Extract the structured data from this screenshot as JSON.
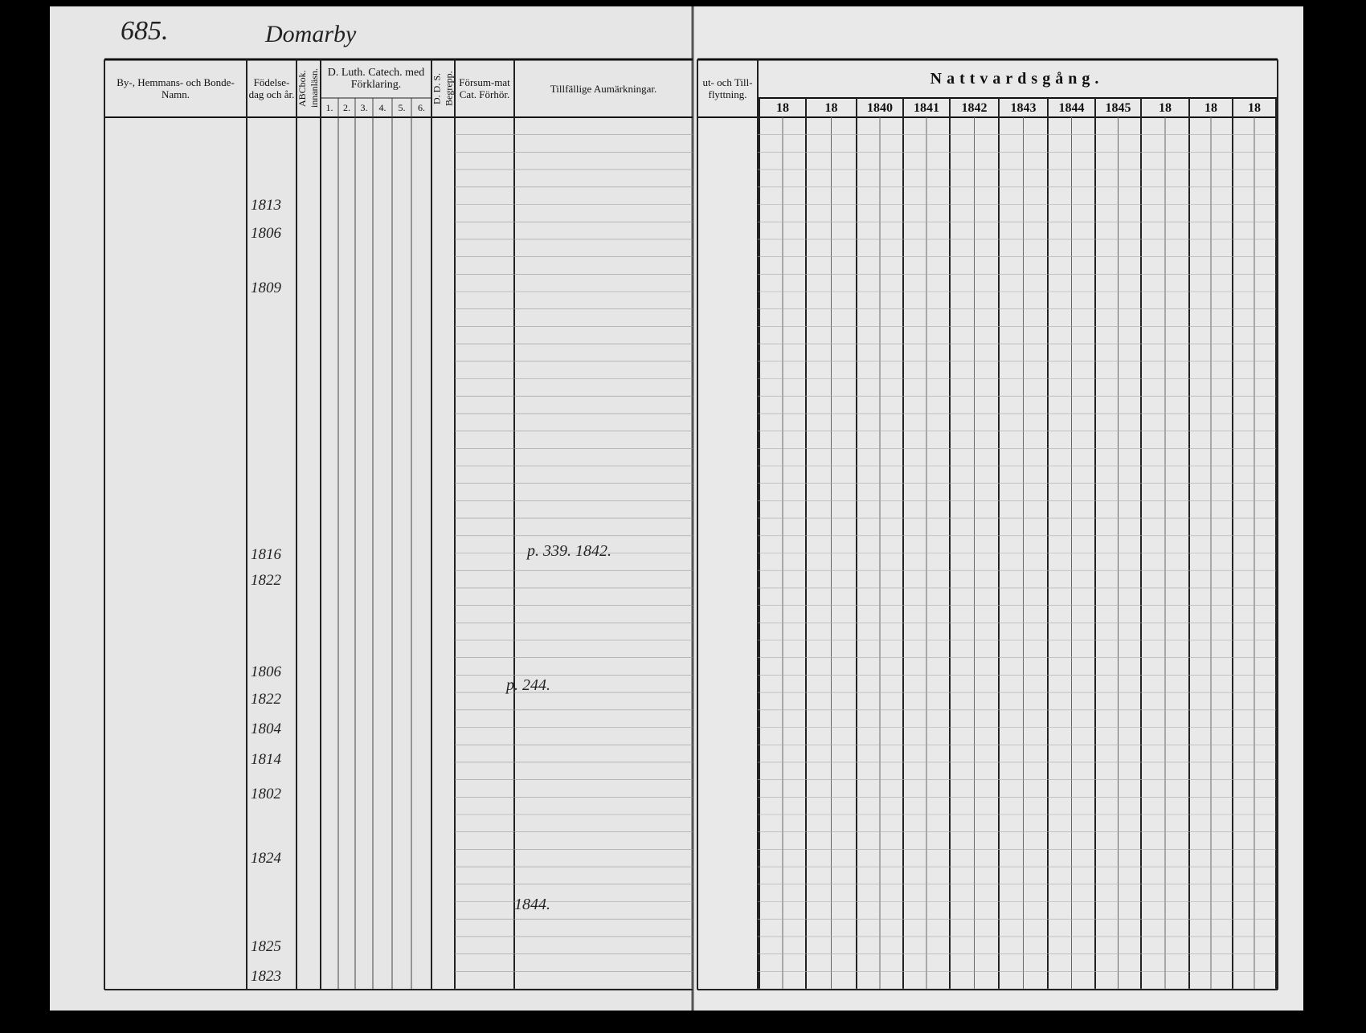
{
  "header": {
    "page_number": "685.",
    "place": "Domarby"
  },
  "left_page": {
    "columns": {
      "name": "By-, Hemmans- och Bonde-Namn.",
      "birth": "Födelse-dag och år.",
      "abc": "ABCbok. innanläsn.",
      "catechism": "D. Luth. Catech. med Förklaring.",
      "catechism_parts": [
        "1.",
        "2.",
        "3.",
        "4.",
        "5.",
        "6."
      ],
      "dds": "D. D. S. Begrepp.",
      "missed": "Försum-mat Cat. Förhör.",
      "remarks": "Tillfällige Aumärkningar."
    },
    "birth_years": [
      "1813",
      "1806",
      "1809",
      "1816",
      "1822",
      "1806",
      "1822",
      "1804",
      "1814",
      "1802",
      "1824",
      "1825",
      "1823"
    ],
    "notes": [
      "p. 339. 1842.",
      "p. 244.",
      "1844."
    ]
  },
  "right_page": {
    "columns": {
      "moving": "ut- och Till-flyttning.",
      "communion": "Nattvardsgång."
    },
    "years": [
      "18",
      "18",
      "1840",
      "1841",
      "1842",
      "1843",
      "1844",
      "1845",
      "18",
      "18",
      "18"
    ]
  }
}
